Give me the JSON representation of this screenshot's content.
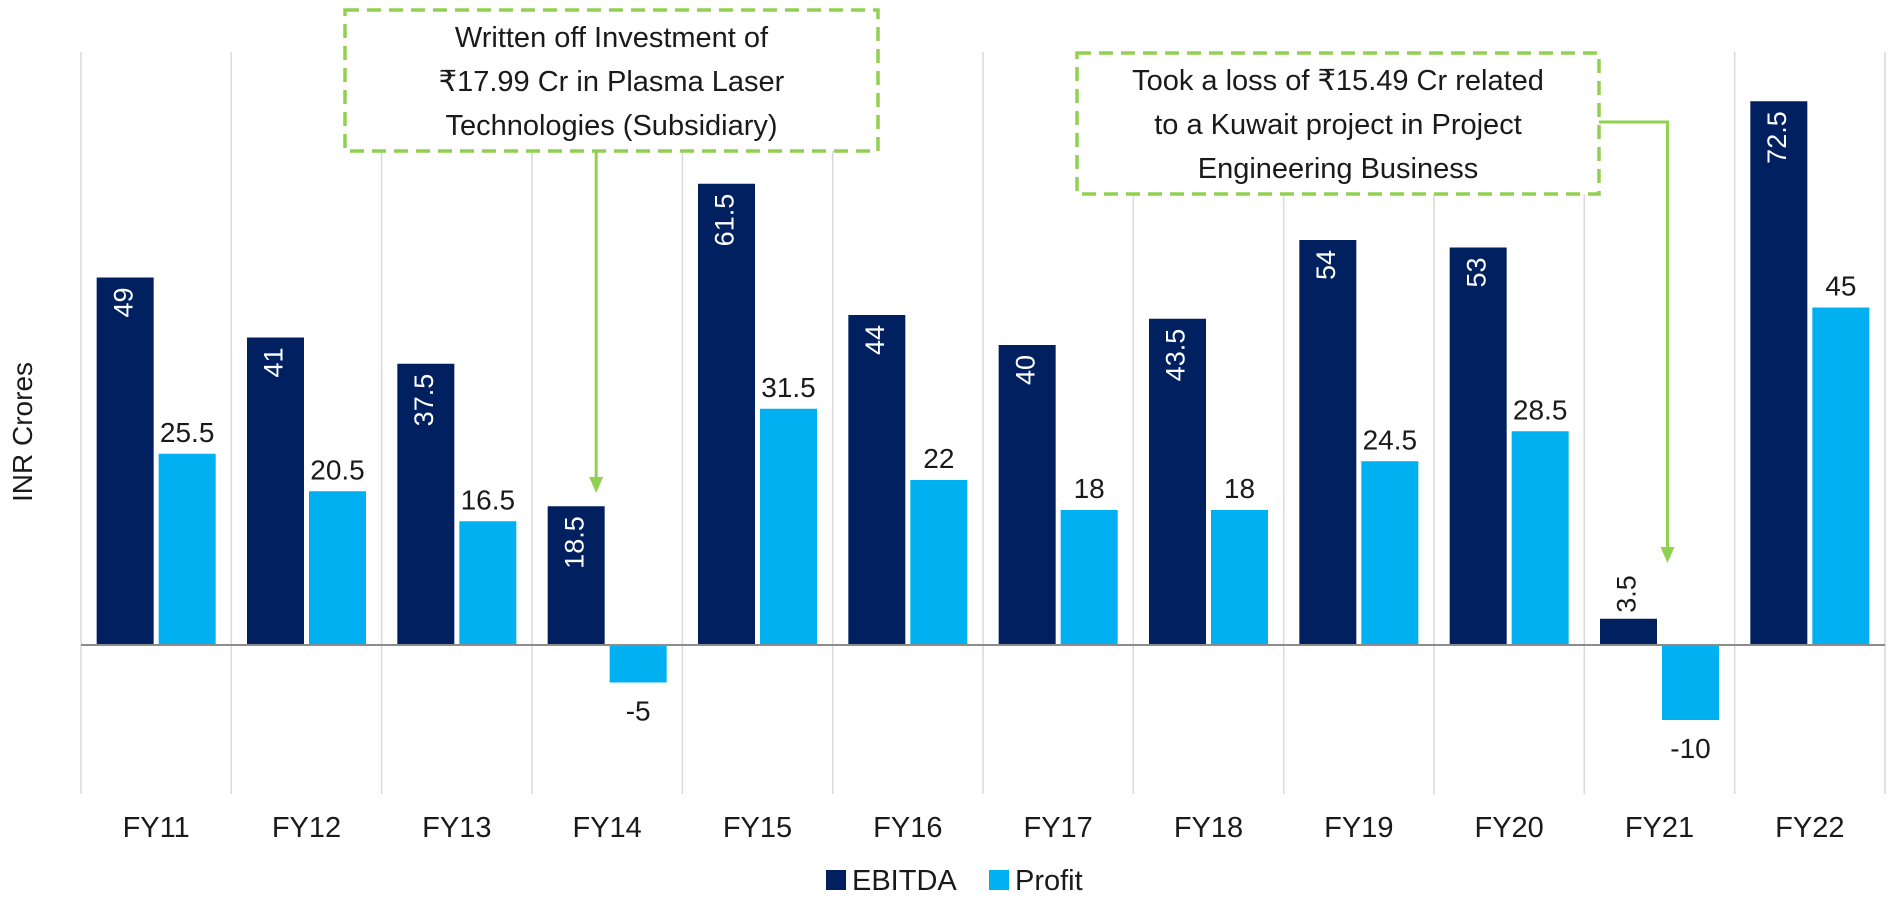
{
  "chart_data": {
    "type": "bar",
    "ylabel": "INR Crores",
    "categories": [
      "FY11",
      "FY12",
      "FY13",
      "FY14",
      "FY15",
      "FY16",
      "FY17",
      "FY18",
      "FY19",
      "FY20",
      "FY21",
      "FY22"
    ],
    "series": [
      {
        "name": "EBITDA",
        "color": "#002060",
        "values": [
          49,
          41,
          37.5,
          18.5,
          61.5,
          44,
          40,
          43.5,
          54,
          53,
          3.5,
          72.5
        ]
      },
      {
        "name": "Profit",
        "color": "#00b0f0",
        "values": [
          25.5,
          20.5,
          16.5,
          -5,
          31.5,
          22,
          18,
          18,
          24.5,
          28.5,
          -10,
          45
        ]
      }
    ],
    "ylim": [
      -20,
      80
    ],
    "grid": "vertical",
    "legend": "bottom-center",
    "annotations": [
      {
        "target": "FY14",
        "series": "Profit",
        "lines": [
          "Written off Investment of",
          "₹17.99 Cr in Plasma Laser",
          "Technologies (Subsidiary)"
        ]
      },
      {
        "target": "FY21",
        "series": "Profit",
        "lines": [
          "Took a loss of ₹15.49 Cr related",
          "to a Kuwait project in Project",
          "Engineering Business"
        ]
      }
    ],
    "annotation_border_color": "#92d050"
  }
}
